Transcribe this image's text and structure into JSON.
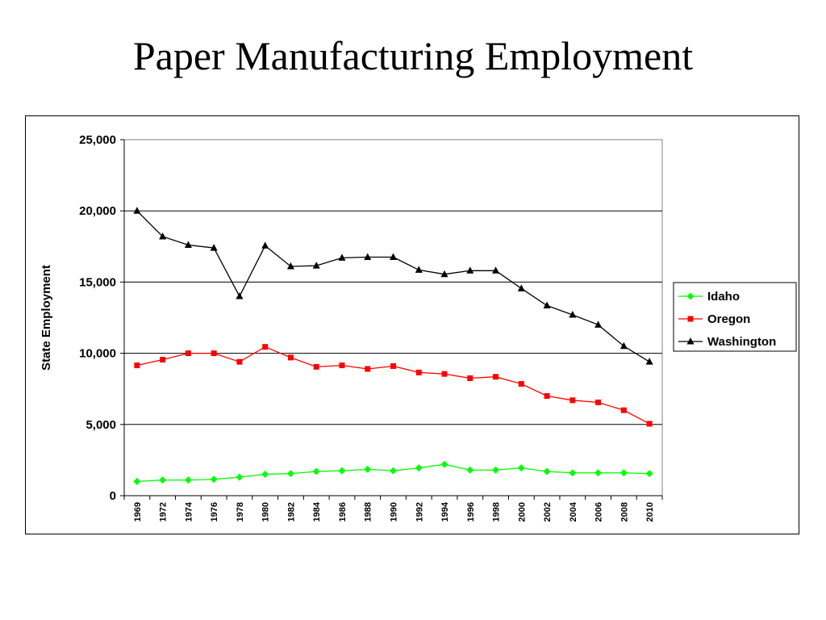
{
  "page": {
    "title": "Paper Manufacturing Employment"
  },
  "chart_data": {
    "type": "line",
    "title": "Paper Manufacturing Employment",
    "xlabel": "",
    "ylabel": "State Employment",
    "ylim": [
      0,
      25000
    ],
    "yticks": [
      0,
      5000,
      10000,
      15000,
      20000,
      25000
    ],
    "ytick_labels": [
      "0",
      "5,000",
      "10,000",
      "15,000",
      "20,000",
      "25,000"
    ],
    "grid": "horizontal",
    "legend_position": "right",
    "categories": [
      "1969",
      "1972",
      "1974",
      "1976",
      "1978",
      "1980",
      "1982",
      "1984",
      "1986",
      "1988",
      "1990",
      "1992",
      "1994",
      "1996",
      "1998",
      "2000",
      "2002",
      "2004",
      "2006",
      "2008",
      "2010"
    ],
    "series": [
      {
        "name": "Idaho",
        "color": "#00ff00",
        "marker": "diamond",
        "values": [
          1000,
          1100,
          1100,
          1150,
          1300,
          1500,
          1550,
          1700,
          1750,
          1850,
          1750,
          1950,
          2200,
          1800,
          1800,
          1950,
          1700,
          1600,
          1600,
          1600,
          1550
        ]
      },
      {
        "name": "Oregon",
        "color": "#ff0000",
        "marker": "square",
        "values": [
          9150,
          9550,
          10000,
          10000,
          9400,
          10450,
          9700,
          9050,
          9150,
          8900,
          9100,
          8650,
          8550,
          8250,
          8350,
          7850,
          7000,
          6700,
          6550,
          6000,
          5050
        ]
      },
      {
        "name": "Washington",
        "color": "#000000",
        "marker": "triangle",
        "values": [
          20000,
          18200,
          17600,
          17400,
          14000,
          17550,
          16100,
          16150,
          16700,
          16750,
          16750,
          15850,
          15550,
          15800,
          15800,
          14550,
          13350,
          12700,
          12000,
          10500,
          9400
        ]
      }
    ]
  }
}
